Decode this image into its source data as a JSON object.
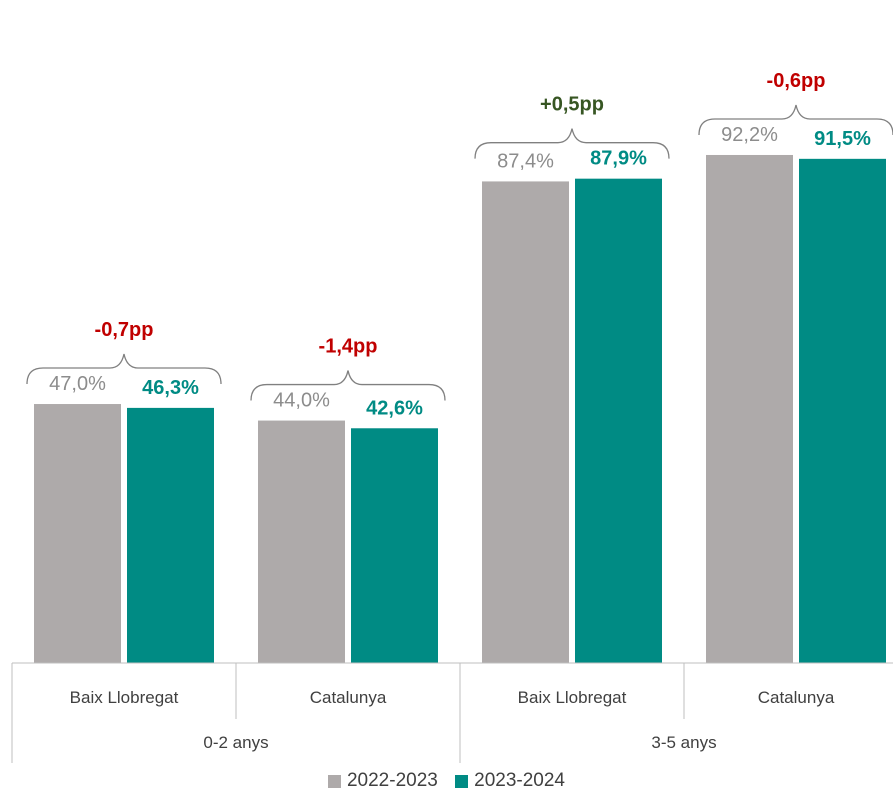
{
  "chart_data": {
    "type": "bar",
    "groups": [
      "0-2 anys",
      "3-5 anys"
    ],
    "categories": [
      "Baix Llobregat",
      "Catalunya",
      "Baix Llobregat",
      "Catalunya"
    ],
    "category_group": [
      0,
      0,
      1,
      1
    ],
    "series": [
      {
        "name": "2022-2023",
        "color": "#AEAAAA",
        "values": [
          47.0,
          44.0,
          87.4,
          92.2
        ],
        "labels": [
          "47,0%",
          "44,0%",
          "87,4%",
          "92,2%"
        ]
      },
      {
        "name": "2023-2024",
        "color": "#008B84",
        "values": [
          46.3,
          42.6,
          87.9,
          91.5
        ],
        "labels": [
          "46,3%",
          "42,6%",
          "87,9%",
          "91,5%"
        ]
      }
    ],
    "differences": [
      {
        "label": "-0,7pp",
        "color": "#C00000"
      },
      {
        "label": "-1,4pp",
        "color": "#C00000"
      },
      {
        "label": "+0,5pp",
        "color": "#375623"
      },
      {
        "label": "-0,6pp",
        "color": "#C00000"
      }
    ],
    "ylim": [
      0,
      100
    ],
    "grid": false,
    "legend_position": "bottom",
    "title": "",
    "xlabel": "",
    "ylabel": ""
  }
}
